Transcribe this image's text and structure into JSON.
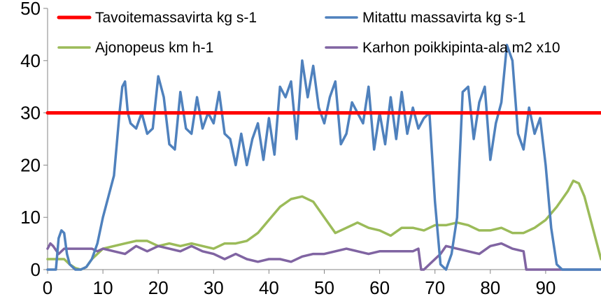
{
  "chart_data": {
    "type": "line",
    "title": "",
    "xlabel": "",
    "ylabel": "",
    "xlim": [
      0,
      100
    ],
    "ylim": [
      0,
      50
    ],
    "x_ticks": [
      0,
      10,
      20,
      30,
      40,
      50,
      60,
      70,
      80,
      90
    ],
    "y_ticks": [
      0,
      10,
      20,
      30,
      40,
      50
    ],
    "grid": false,
    "legend_position": "top",
    "series": [
      {
        "name": "Tavoitemassavirta kg s-1",
        "color": "#ff0000",
        "points": [
          [
            0,
            30
          ],
          [
            100,
            30
          ]
        ]
      },
      {
        "name": "Mitattu massavirta kg s-1",
        "color": "#4f81bd",
        "points": [
          [
            0,
            0
          ],
          [
            1,
            0
          ],
          [
            1.5,
            0
          ],
          [
            2,
            6
          ],
          [
            2.5,
            7.5
          ],
          [
            3,
            7
          ],
          [
            3.5,
            3
          ],
          [
            4,
            1
          ],
          [
            5,
            0
          ],
          [
            6,
            0
          ],
          [
            7,
            0.5
          ],
          [
            8,
            2
          ],
          [
            9,
            5
          ],
          [
            10,
            10
          ],
          [
            11,
            14
          ],
          [
            12,
            18
          ],
          [
            12.5,
            24
          ],
          [
            13,
            30
          ],
          [
            13.5,
            35
          ],
          [
            14,
            36
          ],
          [
            14.5,
            30
          ],
          [
            15,
            28
          ],
          [
            16,
            27
          ],
          [
            17,
            30
          ],
          [
            18,
            26
          ],
          [
            19,
            27
          ],
          [
            20,
            37
          ],
          [
            21,
            33
          ],
          [
            22,
            24
          ],
          [
            23,
            23
          ],
          [
            24,
            34
          ],
          [
            25,
            27
          ],
          [
            26,
            26
          ],
          [
            27,
            33
          ],
          [
            28,
            27
          ],
          [
            29,
            30
          ],
          [
            30,
            28
          ],
          [
            31,
            34
          ],
          [
            32,
            26
          ],
          [
            33,
            25
          ],
          [
            34,
            20
          ],
          [
            35,
            26
          ],
          [
            36,
            20
          ],
          [
            37,
            25
          ],
          [
            38,
            28
          ],
          [
            39,
            21
          ],
          [
            40,
            29
          ],
          [
            41,
            22
          ],
          [
            42,
            35
          ],
          [
            43,
            33
          ],
          [
            44,
            36
          ],
          [
            45,
            25
          ],
          [
            46,
            40
          ],
          [
            47,
            33
          ],
          [
            48,
            39
          ],
          [
            49,
            31
          ],
          [
            50,
            28
          ],
          [
            51,
            33
          ],
          [
            52,
            36
          ],
          [
            53,
            24
          ],
          [
            54,
            26
          ],
          [
            55,
            32
          ],
          [
            56,
            30
          ],
          [
            57,
            28
          ],
          [
            58,
            35
          ],
          [
            59,
            23
          ],
          [
            60,
            30
          ],
          [
            61,
            24
          ],
          [
            62,
            33
          ],
          [
            63,
            25
          ],
          [
            64,
            34
          ],
          [
            65,
            26
          ],
          [
            66,
            31
          ],
          [
            67,
            27
          ],
          [
            68,
            29
          ],
          [
            69,
            30
          ],
          [
            70,
            13
          ],
          [
            71,
            1
          ],
          [
            72,
            0
          ],
          [
            73,
            3
          ],
          [
            74,
            10
          ],
          [
            75,
            34
          ],
          [
            76,
            35
          ],
          [
            77,
            25
          ],
          [
            78,
            32
          ],
          [
            79,
            35
          ],
          [
            80,
            21
          ],
          [
            81,
            28
          ],
          [
            82,
            32
          ],
          [
            83,
            43
          ],
          [
            84,
            40
          ],
          [
            85,
            26
          ],
          [
            86,
            23
          ],
          [
            87,
            31
          ],
          [
            88,
            26
          ],
          [
            89,
            29
          ],
          [
            90,
            20
          ],
          [
            91,
            8
          ],
          [
            92,
            1
          ],
          [
            93,
            0
          ],
          [
            95,
            0
          ],
          [
            100,
            0
          ]
        ]
      },
      {
        "name": "Ajonopeus km h-1",
        "color": "#9bbb59",
        "points": [
          [
            0,
            2
          ],
          [
            2,
            2
          ],
          [
            3,
            2
          ],
          [
            4,
            1
          ],
          [
            5,
            0.3
          ],
          [
            6,
            0
          ],
          [
            7,
            0.5
          ],
          [
            8,
            2
          ],
          [
            10,
            4
          ],
          [
            12,
            4.5
          ],
          [
            14,
            5
          ],
          [
            16,
            5.5
          ],
          [
            18,
            5.5
          ],
          [
            20,
            4.5
          ],
          [
            22,
            5
          ],
          [
            24,
            4.5
          ],
          [
            26,
            5
          ],
          [
            28,
            4.5
          ],
          [
            30,
            4
          ],
          [
            32,
            5
          ],
          [
            34,
            5
          ],
          [
            36,
            5.5
          ],
          [
            38,
            7
          ],
          [
            40,
            9.5
          ],
          [
            42,
            12
          ],
          [
            44,
            13.5
          ],
          [
            46,
            14
          ],
          [
            48,
            13
          ],
          [
            50,
            10
          ],
          [
            52,
            7
          ],
          [
            54,
            8
          ],
          [
            56,
            9
          ],
          [
            58,
            8
          ],
          [
            60,
            7.5
          ],
          [
            62,
            6.5
          ],
          [
            64,
            8
          ],
          [
            66,
            8
          ],
          [
            68,
            7.5
          ],
          [
            70,
            8.5
          ],
          [
            72,
            8.5
          ],
          [
            74,
            9
          ],
          [
            76,
            8.5
          ],
          [
            78,
            7.5
          ],
          [
            80,
            7.5
          ],
          [
            82,
            8
          ],
          [
            84,
            7
          ],
          [
            86,
            7
          ],
          [
            88,
            8
          ],
          [
            90,
            9.5
          ],
          [
            92,
            12
          ],
          [
            94,
            15
          ],
          [
            95,
            17
          ],
          [
            96,
            16.5
          ],
          [
            97,
            14
          ],
          [
            98,
            10
          ],
          [
            99,
            6
          ],
          [
            100,
            2
          ]
        ]
      },
      {
        "name": "Karhon poikkipinta-ala m2 x10",
        "color": "#8064a2",
        "points": [
          [
            0,
            4
          ],
          [
            0.5,
            5
          ],
          [
            1,
            4.5
          ],
          [
            2,
            3
          ],
          [
            3,
            4
          ],
          [
            5,
            4
          ],
          [
            7,
            4
          ],
          [
            8,
            4
          ],
          [
            9,
            3.5
          ],
          [
            10,
            4
          ],
          [
            12,
            3.5
          ],
          [
            14,
            3
          ],
          [
            16,
            4.5
          ],
          [
            18,
            3.5
          ],
          [
            20,
            4.5
          ],
          [
            22,
            4
          ],
          [
            24,
            3.5
          ],
          [
            26,
            4.5
          ],
          [
            28,
            3.5
          ],
          [
            30,
            3
          ],
          [
            32,
            2
          ],
          [
            34,
            3
          ],
          [
            36,
            2
          ],
          [
            38,
            1.5
          ],
          [
            40,
            2
          ],
          [
            42,
            2
          ],
          [
            44,
            1.5
          ],
          [
            46,
            2.5
          ],
          [
            48,
            3
          ],
          [
            50,
            3
          ],
          [
            52,
            3.5
          ],
          [
            54,
            4
          ],
          [
            56,
            3.5
          ],
          [
            58,
            3
          ],
          [
            60,
            3.5
          ],
          [
            62,
            3.5
          ],
          [
            64,
            3.5
          ],
          [
            66,
            3.5
          ],
          [
            67,
            4
          ],
          [
            67.5,
            0
          ],
          [
            68,
            0
          ],
          [
            69,
            1
          ],
          [
            70,
            2
          ],
          [
            71,
            3
          ],
          [
            72,
            4.5
          ],
          [
            74,
            4
          ],
          [
            76,
            3.5
          ],
          [
            78,
            3
          ],
          [
            80,
            4.5
          ],
          [
            82,
            5
          ],
          [
            84,
            4
          ],
          [
            86,
            3.5
          ],
          [
            86.5,
            0
          ],
          [
            88,
            0
          ],
          [
            90,
            0
          ],
          [
            100,
            0
          ]
        ]
      }
    ]
  }
}
